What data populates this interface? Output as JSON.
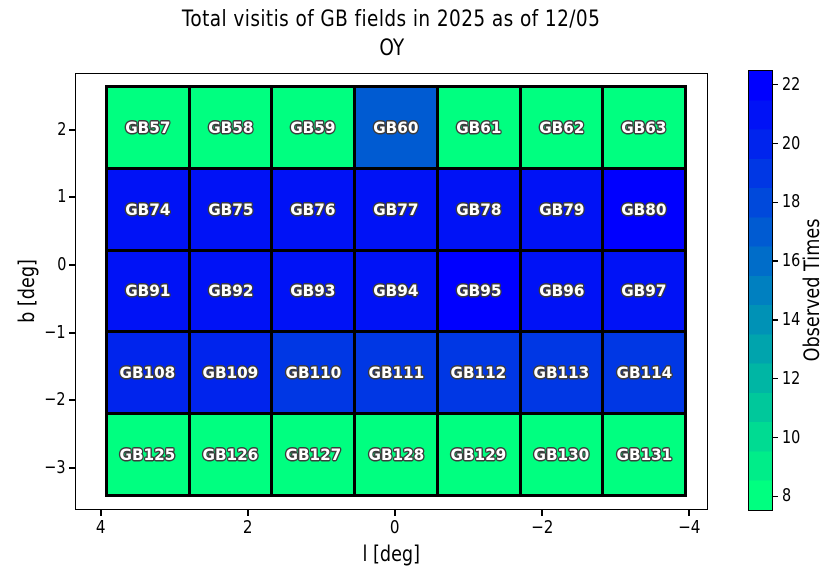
{
  "chart_data": {
    "type": "heatmap",
    "title": "Total visitis of GB fields in 2025 as of 12/05",
    "subtitle": "OY",
    "xlabel": "l [deg]",
    "ylabel": "b [deg]",
    "x_ticks": [
      "4",
      "2",
      "0",
      "−2",
      "−4"
    ],
    "y_ticks": [
      "2",
      "1",
      "0",
      "−1",
      "−2",
      "−3"
    ],
    "x_axis_inverted": true,
    "xlim": [
      4.35,
      -4.25
    ],
    "ylim": [
      -3.6,
      2.85
    ],
    "grid_extent": {
      "l": [
        3.97,
        -3.97
      ],
      "b": [
        2.67,
        -3.43
      ]
    },
    "l_centers": [
      3.4,
      2.27,
      1.13,
      0.0,
      -1.13,
      -2.27,
      -3.4
    ],
    "value_min": 8,
    "value_max": 22,
    "colorbar": {
      "label": "Observed Times",
      "ticks": [
        "8",
        "10",
        "12",
        "14",
        "16",
        "18",
        "20",
        "22"
      ],
      "tick_values": [
        8,
        10,
        12,
        14,
        16,
        18,
        20,
        22
      ],
      "vmin": 7.5,
      "vmax": 22.5,
      "levels": 15,
      "colormap": "winter_r",
      "low_color": "#00FF80",
      "high_color": "#0000FF"
    },
    "rows": [
      {
        "b_center": 2.06,
        "fields": [
          {
            "label": "GB57",
            "value": 8
          },
          {
            "label": "GB58",
            "value": 8
          },
          {
            "label": "GB59",
            "value": 8
          },
          {
            "label": "GB60",
            "value": 17
          },
          {
            "label": "GB61",
            "value": 8
          },
          {
            "label": "GB62",
            "value": 8
          },
          {
            "label": "GB63",
            "value": 8
          }
        ]
      },
      {
        "b_center": 0.83,
        "fields": [
          {
            "label": "GB74",
            "value": 21
          },
          {
            "label": "GB75",
            "value": 21
          },
          {
            "label": "GB76",
            "value": 21
          },
          {
            "label": "GB77",
            "value": 21
          },
          {
            "label": "GB78",
            "value": 21
          },
          {
            "label": "GB79",
            "value": 21
          },
          {
            "label": "GB80",
            "value": 22
          }
        ]
      },
      {
        "b_center": -0.39,
        "fields": [
          {
            "label": "GB91",
            "value": 21
          },
          {
            "label": "GB92",
            "value": 21
          },
          {
            "label": "GB93",
            "value": 21
          },
          {
            "label": "GB94",
            "value": 21
          },
          {
            "label": "GB95",
            "value": 22
          },
          {
            "label": "GB96",
            "value": 21
          },
          {
            "label": "GB97",
            "value": 21
          }
        ]
      },
      {
        "b_center": -1.61,
        "fields": [
          {
            "label": "GB108",
            "value": 20
          },
          {
            "label": "GB109",
            "value": 20
          },
          {
            "label": "GB110",
            "value": 19
          },
          {
            "label": "GB111",
            "value": 19
          },
          {
            "label": "GB112",
            "value": 19
          },
          {
            "label": "GB113",
            "value": 19
          },
          {
            "label": "GB114",
            "value": 19
          }
        ]
      },
      {
        "b_center": -2.82,
        "fields": [
          {
            "label": "GB125",
            "value": 8
          },
          {
            "label": "GB126",
            "value": 8
          },
          {
            "label": "GB127",
            "value": 8
          },
          {
            "label": "GB128",
            "value": 8
          },
          {
            "label": "GB129",
            "value": 8
          },
          {
            "label": "GB130",
            "value": 8
          },
          {
            "label": "GB131",
            "value": 8
          }
        ]
      }
    ]
  }
}
